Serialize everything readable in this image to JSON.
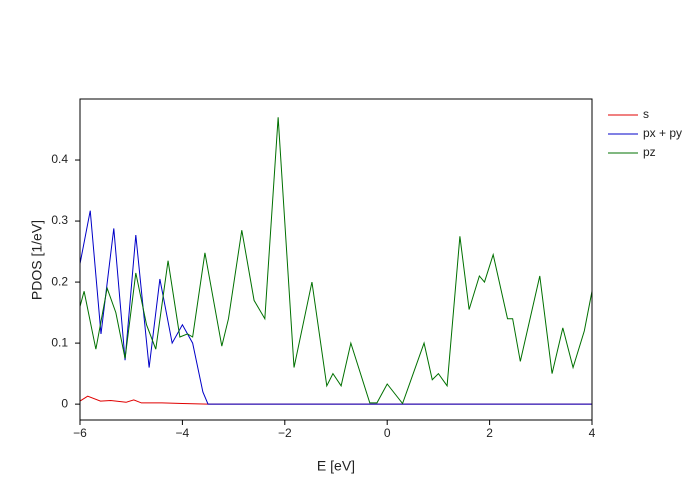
{
  "chart_data": {
    "type": "line",
    "xlabel": "E [eV]",
    "ylabel": "PDOS [1/eV]",
    "xlim": [
      -6,
      4
    ],
    "ylim": [
      -0.026,
      0.5
    ],
    "xticks": [
      {
        "value": -6,
        "label": "−6"
      },
      {
        "value": -4,
        "label": "−4"
      },
      {
        "value": -2,
        "label": "−2"
      },
      0,
      2,
      4
    ],
    "yticks": [
      0,
      0.1,
      0.2,
      0.3,
      0.4
    ],
    "legend": "right",
    "series": [
      {
        "name": "s",
        "color": "#e00000",
        "x": [
          -6,
          -5.85,
          -5.6,
          -5.4,
          -5.1,
          -4.95,
          -4.8,
          -4.4,
          -4,
          -3.5,
          4
        ],
        "values": [
          0.005,
          0.013,
          0.005,
          0.006,
          0.003,
          0.007,
          0.002,
          0.002,
          0.001,
          0,
          0
        ]
      },
      {
        "name": "px + py",
        "color": "#0000c8",
        "x": [
          -6,
          -5.8,
          -5.59,
          -5.34,
          -5.12,
          -4.91,
          -4.65,
          -4.44,
          -4.2,
          -4,
          -3.8,
          -3.6,
          -3.5,
          4
        ],
        "values": [
          0.23,
          0.317,
          0.115,
          0.288,
          0.072,
          0.277,
          0.06,
          0.205,
          0.1,
          0.13,
          0.1,
          0.02,
          0,
          0
        ]
      },
      {
        "name": "pz",
        "color": "#007000",
        "x": [
          -6,
          -5.92,
          -5.69,
          -5.47,
          -5.3,
          -5.12,
          -4.91,
          -4.7,
          -4.52,
          -4.28,
          -4.05,
          -3.9,
          -3.8,
          -3.56,
          -3.23,
          -3.1,
          -2.84,
          -2.6,
          -2.39,
          -2.13,
          -1.82,
          -1.47,
          -1.18,
          -1.06,
          -0.9,
          -0.71,
          -0.34,
          -0.2,
          0,
          0.3,
          0.72,
          0.88,
          1,
          1.17,
          1.42,
          1.6,
          1.8,
          1.9,
          2.07,
          2.35,
          2.45,
          2.6,
          2.98,
          3.22,
          3.43,
          3.63,
          3.85,
          4
        ],
        "values": [
          0.16,
          0.185,
          0.09,
          0.19,
          0.15,
          0.075,
          0.215,
          0.13,
          0.09,
          0.235,
          0.11,
          0.115,
          0.11,
          0.248,
          0.095,
          0.14,
          0.285,
          0.17,
          0.14,
          0.47,
          0.06,
          0.2,
          0.03,
          0.05,
          0.03,
          0.1,
          0.002,
          0.002,
          0.033,
          0.001,
          0.1,
          0.04,
          0.05,
          0.03,
          0.275,
          0.155,
          0.21,
          0.2,
          0.245,
          0.14,
          0.14,
          0.07,
          0.21,
          0.05,
          0.125,
          0.06,
          0.12,
          0.185
        ]
      }
    ]
  }
}
